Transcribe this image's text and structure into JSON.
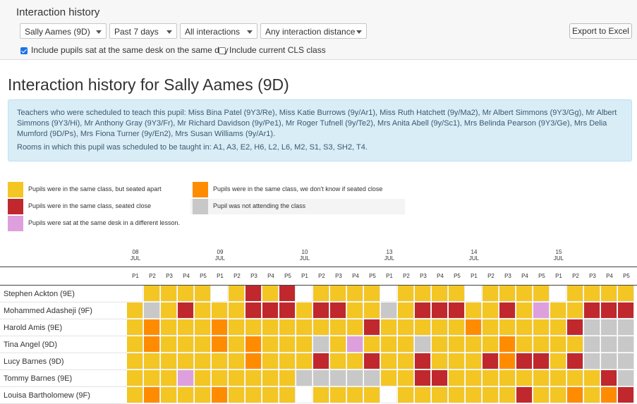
{
  "header": {
    "title": "Interaction history",
    "pupil_select": "Sally Aames (9D)",
    "period_select": "Past 7 days",
    "type_select": "All interactions",
    "distance_select": "Any interaction distance",
    "export_label": "Export to Excel",
    "check_same_desk": "Include pupils sat at the same desk on the same day",
    "check_same_desk_checked": true,
    "check_cls": "Include current CLS class",
    "check_cls_checked": false
  },
  "page_title": "Interaction history for Sally Aames (9D)",
  "info": {
    "teachers": "Teachers who were scheduled to teach this pupil: Miss Bina Patel (9Y3/Re), Miss Katie Burrows (9y/Ar1), Miss Ruth Hatchett (9y/Ma2), Mr Albert Simmons (9Y3/Gg), Mr Albert Simmons (9Y3/Hi), Mr Anthony Gray (9Y3/Fr), Mr Richard Davidson (9y/Pe1), Mr Roger Tufnell (9y/Te2), Mrs Anita Abell (9y/Sc1), Mrs Belinda Pearson (9Y3/Ge), Mrs Delia Mumford (9D/Ps), Mrs Fiona Turner (9y/En2), Mrs Susan Williams (9y/Ar1).",
    "rooms": "Rooms in which this pupil was scheduled to be taught in: A1, A3, E2, H6, L2, L6, M2, S1, S3, SH2, T4."
  },
  "legend": [
    {
      "key": "Y",
      "color": "#f3c623",
      "label": "Pupils were in the same class, but seated apart"
    },
    {
      "key": "O",
      "color": "#ff8c00",
      "label": "Pupils were in the same class, we don't know if seated close"
    },
    {
      "key": "R",
      "color": "#c0282d",
      "label": "Pupils were in the same class, seated close"
    },
    {
      "key": "G",
      "color": "#c8c8c8",
      "label": "Pupil was not attending the class"
    },
    {
      "key": "P",
      "color": "#dda0dd",
      "label": "Pupils were sat at the same desk in a different lesson."
    }
  ],
  "colors": {
    "W": "#ffffff",
    "Y": "#f3c623",
    "O": "#ff8c00",
    "R": "#c0282d",
    "G": "#c8c8c8",
    "P": "#dda0dd"
  },
  "days": [
    {
      "day": "08",
      "month": "JUL"
    },
    {
      "day": "09",
      "month": "JUL"
    },
    {
      "day": "10",
      "month": "JUL"
    },
    {
      "day": "13",
      "month": "JUL"
    },
    {
      "day": "14",
      "month": "JUL"
    },
    {
      "day": "15",
      "month": "JUL"
    }
  ],
  "periods": [
    "P1",
    "P2",
    "P3",
    "P4",
    "P5"
  ],
  "rows": [
    {
      "name": "Stephen Ackton (9E)",
      "cells": "WYYYYWYRYRWYYYYWYYYYWYYYYWYYYY"
    },
    {
      "name": "Mohammed Adasheji (9F)",
      "cells": "YGYRYYYRRRYRRYYGYRRRYYRYPYYRRR"
    },
    {
      "name": "Harold Amis (9E)",
      "cells": "YOYYYOYYYYYYYYRYYYYYOYYYYYRGGG"
    },
    {
      "name": "Tina Angel (9D)",
      "cells": "YOYYYOYOYYYGYPYYYGYYYYOYYYYGGG"
    },
    {
      "name": "Lucy Barnes (9D)",
      "cells": "YYYYYYYOYYYRYYRYYRYYYRORRYRGGG"
    },
    {
      "name": "Tommy Barnes (9E)",
      "cells": "YYYPYYYYYYGGGGGYYRRYYYYYYYYYRG"
    },
    {
      "name": "Louisa Bartholomew (9F)",
      "cells": "YOYYYOYYYYWYYYYWYYYYYYYRYYOYOR"
    }
  ]
}
